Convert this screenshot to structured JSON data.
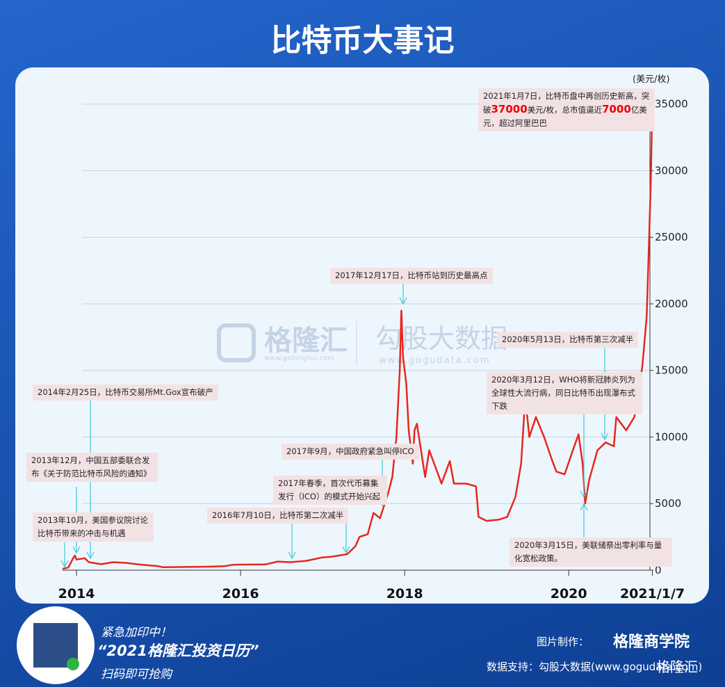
{
  "title": "比特币大事记",
  "chart_data": {
    "type": "line",
    "y_unit": "(美元/枚)",
    "color": "#e8261c",
    "x": [
      2013.83,
      2013.9,
      2013.95,
      2013.98,
      2014.0,
      2014.1,
      2014.15,
      2014.3,
      2014.45,
      2014.6,
      2014.8,
      2015.0,
      2015.05,
      2015.3,
      2015.6,
      2015.8,
      2015.9,
      2016.0,
      2016.3,
      2016.45,
      2016.6,
      2016.8,
      2016.99,
      2017.1,
      2017.2,
      2017.3,
      2017.4,
      2017.45,
      2017.55,
      2017.62,
      2017.7,
      2017.8,
      2017.85,
      2017.9,
      2017.94,
      2017.96,
      2017.98,
      2018.02,
      2018.05,
      2018.1,
      2018.12,
      2018.15,
      2018.25,
      2018.3,
      2018.45,
      2018.55,
      2018.6,
      2018.75,
      2018.87,
      2018.9,
      2019.0,
      2019.15,
      2019.25,
      2019.35,
      2019.42,
      2019.47,
      2019.52,
      2019.6,
      2019.7,
      2019.8,
      2019.85,
      2019.95,
      2020.05,
      2020.12,
      2020.17,
      2020.2,
      2020.25,
      2020.35,
      2020.45,
      2020.55,
      2020.58,
      2020.7,
      2020.8,
      2020.85,
      2020.9,
      2020.95,
      2020.97,
      2021.0,
      2021.02
    ],
    "values": [
      100,
      200,
      800,
      1100,
      800,
      900,
      600,
      450,
      600,
      550,
      400,
      300,
      220,
      240,
      260,
      300,
      400,
      420,
      430,
      650,
      600,
      700,
      950,
      1000,
      1100,
      1200,
      1800,
      2500,
      2700,
      4300,
      3900,
      5800,
      7000,
      10000,
      15000,
      19500,
      16000,
      14000,
      10500,
      8000,
      10500,
      11000,
      7000,
      9000,
      6500,
      8200,
      6500,
      6500,
      6300,
      4000,
      3700,
      3800,
      4000,
      5500,
      8000,
      13000,
      10000,
      11500,
      10000,
      8200,
      7400,
      7200,
      9000,
      10200,
      8000,
      5000,
      6800,
      9000,
      9600,
      9300,
      11500,
      10500,
      11500,
      13000,
      15500,
      19000,
      23000,
      29000,
      35600
    ],
    "xlim": [
      2013.83,
      2021.1
    ],
    "xticks": [
      2014,
      2016,
      2018,
      2020,
      {
        "value": 2021.02,
        "label": "2021/1/7"
      }
    ],
    "ylim": [
      0,
      36500
    ],
    "yticks": [
      0,
      5000,
      10000,
      15000,
      20000,
      25000,
      30000,
      35000
    ],
    "grid": true,
    "annotations": [
      [
        "2021年1月7日，比特币盘中再创历史新高，突破",
        "37000",
        "美元/枚，总市值逼近",
        "7000",
        "亿美元，超过阿里巴巴"
      ],
      [
        "2017年12月17日，比特币站到历史最高点"
      ],
      [
        "2020年5月13日，比特币第三次减半"
      ],
      [
        "2020年3月12日，WHO将新冠肺炎列为全球性大流行病，同日比特币出现瀑布式下跌"
      ],
      [
        "2020年3月15日，美联储祭出零利率与量化宽松政策。"
      ],
      [
        "2014年2月25日，比特币交易所Mt.Gox宣布破产"
      ],
      [
        "2013年12月，中国五部委联合发布《关于防范比特币风险的通知》"
      ],
      [
        "2013年10月，美国参议院讨论比特币带来的冲击与机遇"
      ],
      [
        "2016年7月10日，比特币第二次减半"
      ],
      [
        "2017年春季，首次代币募集发行（ICO）的模式开始兴起"
      ],
      [
        "2017年9月，中国政府紧急叫停ICO"
      ]
    ]
  },
  "watermark": {
    "brand": "格隆汇",
    "brand_url": "www.gelonghui.com",
    "data_brand": "勾股大数据",
    "data_url": "www.gogudata.com"
  },
  "footer": {
    "line1": "紧急加印中！",
    "line2": "“2021格隆汇投资日历”",
    "line3": "扫码即可抢购",
    "made_by_label": "图片制作：",
    "made_by": "格隆商学院",
    "data_support": "数据支持：勾股大数据(www.gogudata.com)",
    "logo": "格隆汇"
  }
}
